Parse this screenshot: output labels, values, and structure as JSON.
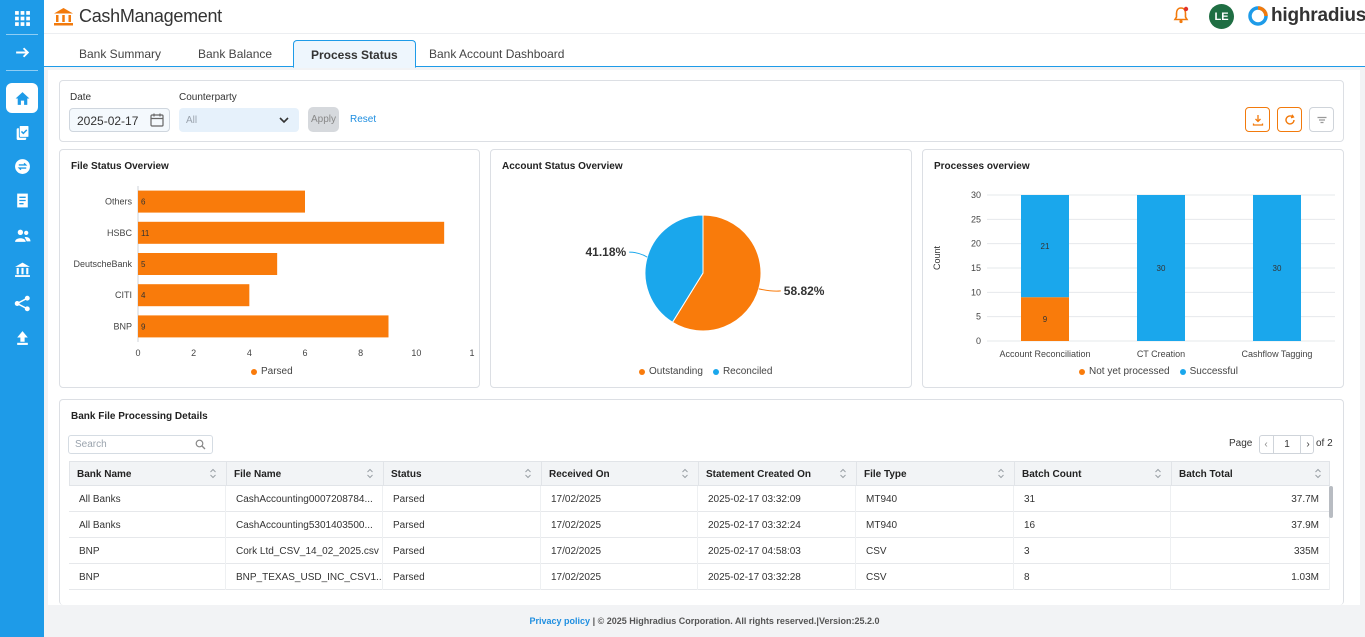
{
  "app": {
    "title": "CashManagement",
    "user_initials": "LE",
    "vendor_logo": "highradius"
  },
  "rail": {
    "icons": [
      "apps-grid-icon",
      "expand-arrow-icon",
      "home-icon",
      "tasks-icon",
      "transfer-icon",
      "report-icon",
      "users-icon",
      "bank-icon",
      "network-icon",
      "upload-icon"
    ]
  },
  "tabs": [
    {
      "label": "Bank Summary"
    },
    {
      "label": "Bank Balance"
    },
    {
      "label": "Process Status"
    },
    {
      "label": "Bank Account Dashboard"
    }
  ],
  "active_tab": "Process Status",
  "filters": {
    "date_label": "Date",
    "date_value": "2025-02-17",
    "counterparty_label": "Counterparty",
    "counterparty_value": "All",
    "apply_label": "Apply",
    "reset_label": "Reset"
  },
  "colors": {
    "accent": "#1e9be8",
    "orange": "#f97b0b",
    "blue": "#1aa7ec"
  },
  "chart_data": [
    {
      "type": "bar",
      "orientation": "horizontal",
      "title": "File Status Overview",
      "categories": [
        "Others",
        "HSBC",
        "DeutscheBank",
        "CITI",
        "BNP"
      ],
      "series": [
        {
          "name": "Parsed",
          "values": [
            6,
            11,
            5,
            4,
            9
          ]
        }
      ],
      "xticks": [
        "0",
        "2",
        "4",
        "6",
        "8",
        "10",
        "1"
      ],
      "xlim": [
        0,
        12
      ],
      "legend": "bottom"
    },
    {
      "type": "pie",
      "title": "Account Status Overview",
      "labels": [
        "Outstanding",
        "Reconciled"
      ],
      "values": [
        58.82,
        41.18
      ],
      "value_labels": [
        "58.82%",
        "41.18%"
      ],
      "legend": "bottom"
    },
    {
      "type": "bar",
      "stacked": true,
      "title": "Processes overview",
      "ylabel": "Count",
      "categories": [
        "Account Reconciliation",
        "CT Creation",
        "Cashflow Tagging"
      ],
      "series": [
        {
          "name": "Not yet processed",
          "values": [
            9,
            0,
            0
          ]
        },
        {
          "name": "Successful",
          "values": [
            21,
            30,
            30
          ]
        }
      ],
      "yticks": [
        "0",
        "5",
        "10",
        "15",
        "20",
        "25",
        "30"
      ],
      "ylim": [
        0,
        30
      ],
      "legend": "bottom"
    }
  ],
  "table": {
    "title": "Bank File Processing Details",
    "search_placeholder": "Search",
    "page_label": "Page",
    "page_value": "1",
    "page_of": "of 2",
    "columns": [
      "Bank Name",
      "File Name",
      "Status",
      "Received On",
      "Statement Created On",
      "File Type",
      "Batch Count",
      "Batch Total"
    ],
    "rows": [
      [
        "All Banks",
        "CashAccounting0007208784...",
        "Parsed",
        "17/02/2025",
        "2025-02-17 03:32:09",
        "MT940",
        "31",
        "37.7M"
      ],
      [
        "All Banks",
        "CashAccounting5301403500...",
        "Parsed",
        "17/02/2025",
        "2025-02-17 03:32:24",
        "MT940",
        "16",
        "37.9M"
      ],
      [
        "BNP",
        "Cork Ltd_CSV_14_02_2025.csv",
        "Parsed",
        "17/02/2025",
        "2025-02-17 04:58:03",
        "CSV",
        "3",
        "335M"
      ],
      [
        "BNP",
        "BNP_TEXAS_USD_INC_CSV1...",
        "Parsed",
        "17/02/2025",
        "2025-02-17 03:32:28",
        "CSV",
        "8",
        "1.03M"
      ]
    ]
  },
  "footer": {
    "privacy": "Privacy policy",
    "copyright": "| © 2025 Highradius Corporation. All rights reserved.|Version:25.2.0"
  }
}
